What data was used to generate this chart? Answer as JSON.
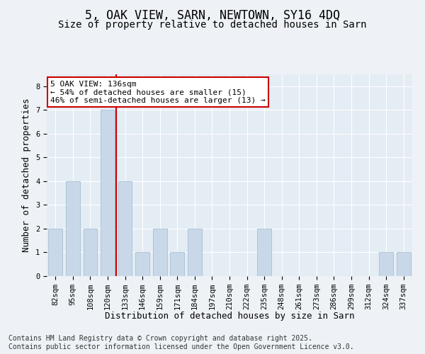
{
  "title_line1": "5, OAK VIEW, SARN, NEWTOWN, SY16 4DQ",
  "title_line2": "Size of property relative to detached houses in Sarn",
  "xlabel": "Distribution of detached houses by size in Sarn",
  "ylabel": "Number of detached properties",
  "categories": [
    "82sqm",
    "95sqm",
    "108sqm",
    "120sqm",
    "133sqm",
    "146sqm",
    "159sqm",
    "171sqm",
    "184sqm",
    "197sqm",
    "210sqm",
    "222sqm",
    "235sqm",
    "248sqm",
    "261sqm",
    "273sqm",
    "286sqm",
    "299sqm",
    "312sqm",
    "324sqm",
    "337sqm"
  ],
  "values": [
    2,
    4,
    2,
    7,
    4,
    1,
    2,
    1,
    2,
    0,
    0,
    0,
    2,
    0,
    0,
    0,
    0,
    0,
    0,
    1,
    1
  ],
  "bar_color": "#c8d8e8",
  "bar_edge_color": "#a0b8ce",
  "vline_x": 3.5,
  "vline_color": "#cc0000",
  "annotation_text": "5 OAK VIEW: 136sqm\n← 54% of detached houses are smaller (15)\n46% of semi-detached houses are larger (13) →",
  "annotation_box_facecolor": "#ffffff",
  "annotation_box_edgecolor": "#cc0000",
  "ylim_max": 8.5,
  "yticks": [
    0,
    1,
    2,
    3,
    4,
    5,
    6,
    7,
    8
  ],
  "footer_line1": "Contains HM Land Registry data © Crown copyright and database right 2025.",
  "footer_line2": "Contains public sector information licensed under the Open Government Licence v3.0.",
  "fig_facecolor": "#eef2f6",
  "ax_facecolor": "#e4ecf4",
  "grid_color": "#ffffff",
  "title1_fontsize": 12,
  "title2_fontsize": 10,
  "tick_fontsize": 7.5,
  "label_fontsize": 9,
  "annot_fontsize": 8,
  "footer_fontsize": 7
}
